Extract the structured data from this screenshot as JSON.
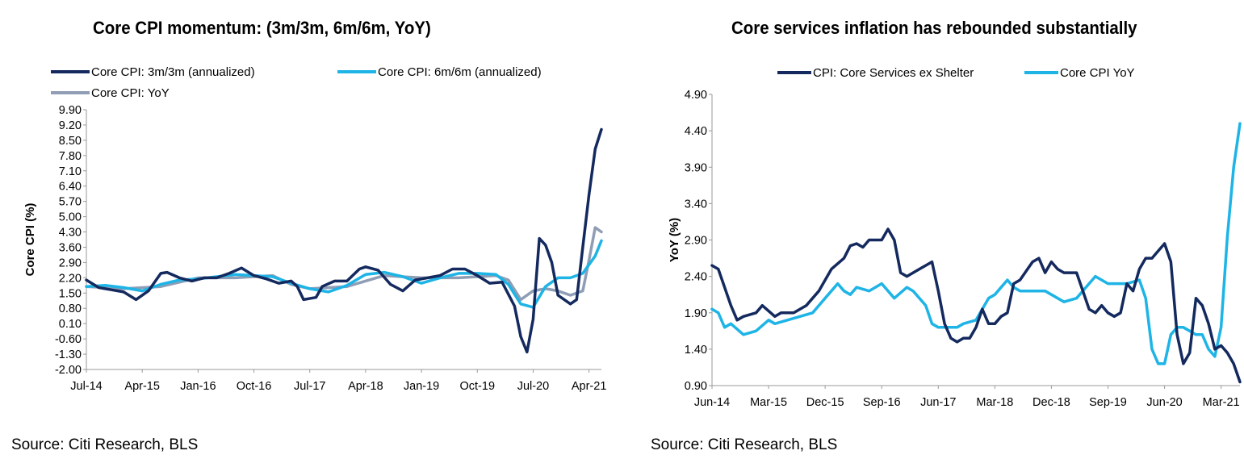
{
  "chart_data": [
    {
      "type": "line",
      "title": "Core CPI momentum: (3m/3m, 6m/6m, YoY)",
      "xlabel": "",
      "ylabel": "Core CPI (%)",
      "ylim": [
        -2.0,
        9.9
      ],
      "y_ticks": [
        "9.90",
        "9.20",
        "8.50",
        "7.80",
        "7.10",
        "6.40",
        "5.70",
        "5.00",
        "4.30",
        "3.60",
        "2.90",
        "2.20",
        "1.50",
        "0.80",
        "0.10",
        "-0.60",
        "-1.30",
        "-2.00"
      ],
      "x_ticks": [
        "Jul-14",
        "Apr-15",
        "Jan-16",
        "Oct-16",
        "Jul-17",
        "Apr-18",
        "Jan-19",
        "Oct-19",
        "Jul-20",
        "Apr-21"
      ],
      "x_range": [
        "Jul-14",
        "Jun-21"
      ],
      "grid": false,
      "legend_position": "top",
      "source": "Source: Citi Research, BLS",
      "series": [
        {
          "name": "Core CPI: 3m/3m (annualized)",
          "color": "#14295e",
          "points": [
            [
              "Jul-14",
              2.1
            ],
            [
              "Sep-14",
              1.75
            ],
            [
              "Nov-14",
              1.65
            ],
            [
              "Jan-15",
              1.55
            ],
            [
              "Mar-15",
              1.2
            ],
            [
              "May-15",
              1.6
            ],
            [
              "Jul-15",
              2.4
            ],
            [
              "Aug-15",
              2.45
            ],
            [
              "Oct-15",
              2.2
            ],
            [
              "Dec-15",
              2.05
            ],
            [
              "Feb-16",
              2.2
            ],
            [
              "Apr-16",
              2.2
            ],
            [
              "Jun-16",
              2.4
            ],
            [
              "Aug-16",
              2.65
            ],
            [
              "Oct-16",
              2.3
            ],
            [
              "Dec-16",
              2.15
            ],
            [
              "Feb-17",
              1.95
            ],
            [
              "Apr-17",
              2.05
            ],
            [
              "May-17",
              1.8
            ],
            [
              "Jun-17",
              1.2
            ],
            [
              "Aug-17",
              1.3
            ],
            [
              "Sep-17",
              1.8
            ],
            [
              "Nov-17",
              2.05
            ],
            [
              "Jan-18",
              2.05
            ],
            [
              "Mar-18",
              2.6
            ],
            [
              "Apr-18",
              2.7
            ],
            [
              "Jun-18",
              2.55
            ],
            [
              "Aug-18",
              1.9
            ],
            [
              "Oct-18",
              1.6
            ],
            [
              "Dec-18",
              2.1
            ],
            [
              "Feb-19",
              2.2
            ],
            [
              "Apr-19",
              2.3
            ],
            [
              "Jun-19",
              2.6
            ],
            [
              "Aug-19",
              2.6
            ],
            [
              "Oct-19",
              2.3
            ],
            [
              "Dec-19",
              1.95
            ],
            [
              "Feb-20",
              2.0
            ],
            [
              "Apr-20",
              0.9
            ],
            [
              "May-20",
              -0.5
            ],
            [
              "Jun-20",
              -1.2
            ],
            [
              "Jul-20",
              0.3
            ],
            [
              "Aug-20",
              4.0
            ],
            [
              "Sep-20",
              3.7
            ],
            [
              "Oct-20",
              2.9
            ],
            [
              "Nov-20",
              1.4
            ],
            [
              "Jan-21",
              1.0
            ],
            [
              "Feb-21",
              1.2
            ],
            [
              "Mar-21",
              3.6
            ],
            [
              "Apr-21",
              6.0
            ],
            [
              "May-21",
              8.1
            ],
            [
              "Jun-21",
              9.0
            ]
          ]
        },
        {
          "name": "Core CPI: 6m/6m (annualized)",
          "color": "#1eb4e6",
          "points": [
            [
              "Jul-14",
              1.8
            ],
            [
              "Oct-14",
              1.85
            ],
            [
              "Jan-15",
              1.75
            ],
            [
              "Apr-15",
              1.6
            ],
            [
              "Jul-15",
              1.9
            ],
            [
              "Oct-15",
              2.1
            ],
            [
              "Jan-16",
              2.15
            ],
            [
              "Apr-16",
              2.25
            ],
            [
              "Jul-16",
              2.35
            ],
            [
              "Oct-16",
              2.3
            ],
            [
              "Jan-17",
              2.25
            ],
            [
              "Apr-17",
              1.95
            ],
            [
              "Jul-17",
              1.7
            ],
            [
              "Oct-17",
              1.55
            ],
            [
              "Jan-18",
              1.85
            ],
            [
              "Apr-18",
              2.35
            ],
            [
              "Jul-18",
              2.45
            ],
            [
              "Oct-18",
              2.25
            ],
            [
              "Jan-19",
              1.95
            ],
            [
              "Apr-19",
              2.2
            ],
            [
              "Jul-19",
              2.4
            ],
            [
              "Oct-19",
              2.4
            ],
            [
              "Jan-20",
              2.35
            ],
            [
              "Mar-20",
              1.9
            ],
            [
              "May-20",
              1.0
            ],
            [
              "Jul-20",
              0.85
            ],
            [
              "Sep-20",
              1.8
            ],
            [
              "Nov-20",
              2.2
            ],
            [
              "Jan-21",
              2.2
            ],
            [
              "Mar-21",
              2.4
            ],
            [
              "May-21",
              3.2
            ],
            [
              "Jun-21",
              3.9
            ]
          ]
        },
        {
          "name": "Core CPI: YoY",
          "color": "#8f9db5",
          "points": [
            [
              "Jul-14",
              1.8
            ],
            [
              "Jan-15",
              1.7
            ],
            [
              "Jul-15",
              1.8
            ],
            [
              "Jan-16",
              2.2
            ],
            [
              "Jul-16",
              2.2
            ],
            [
              "Jan-17",
              2.3
            ],
            [
              "Apr-17",
              1.9
            ],
            [
              "Jul-17",
              1.7
            ],
            [
              "Jan-18",
              1.8
            ],
            [
              "Jul-18",
              2.3
            ],
            [
              "Jan-19",
              2.2
            ],
            [
              "Jul-19",
              2.2
            ],
            [
              "Jan-20",
              2.3
            ],
            [
              "Mar-20",
              2.1
            ],
            [
              "May-20",
              1.2
            ],
            [
              "Jul-20",
              1.6
            ],
            [
              "Sep-20",
              1.7
            ],
            [
              "Nov-20",
              1.6
            ],
            [
              "Jan-21",
              1.4
            ],
            [
              "Mar-21",
              1.6
            ],
            [
              "Apr-21",
              3.0
            ],
            [
              "May-21",
              4.5
            ],
            [
              "Jun-21",
              4.3
            ]
          ]
        }
      ]
    },
    {
      "type": "line",
      "title": "Core services inflation has rebounded substantially",
      "xlabel": "",
      "ylabel": "YoY (%)",
      "ylim": [
        0.9,
        4.9
      ],
      "y_ticks": [
        "4.90",
        "4.40",
        "3.90",
        "3.40",
        "2.90",
        "2.40",
        "1.90",
        "1.40",
        "0.90"
      ],
      "x_ticks": [
        "Jun-14",
        "Mar-15",
        "Dec-15",
        "Sep-16",
        "Jun-17",
        "Mar-18",
        "Dec-18",
        "Sep-19",
        "Jun-20",
        "Mar-21"
      ],
      "x_range": [
        "Jun-14",
        "Jun-21"
      ],
      "grid": false,
      "legend_position": "top",
      "source": "Source: Citi Research, BLS",
      "series": [
        {
          "name": "CPI: Core Services ex Shelter",
          "color": "#14295e",
          "points": [
            [
              "Jun-14",
              2.55
            ],
            [
              "Jul-14",
              2.5
            ],
            [
              "Sep-14",
              2.0
            ],
            [
              "Oct-14",
              1.8
            ],
            [
              "Nov-14",
              1.85
            ],
            [
              "Jan-15",
              1.9
            ],
            [
              "Feb-15",
              2.0
            ],
            [
              "Apr-15",
              1.85
            ],
            [
              "May-15",
              1.9
            ],
            [
              "Jul-15",
              1.9
            ],
            [
              "Sep-15",
              2.0
            ],
            [
              "Nov-15",
              2.2
            ],
            [
              "Jan-16",
              2.5
            ],
            [
              "Mar-16",
              2.65
            ],
            [
              "Apr-16",
              2.82
            ],
            [
              "May-16",
              2.85
            ],
            [
              "Jun-16",
              2.8
            ],
            [
              "Jul-16",
              2.9
            ],
            [
              "Sep-16",
              2.9
            ],
            [
              "Oct-16",
              3.05
            ],
            [
              "Nov-16",
              2.9
            ],
            [
              "Dec-16",
              2.45
            ],
            [
              "Jan-17",
              2.4
            ],
            [
              "Feb-17",
              2.45
            ],
            [
              "Apr-17",
              2.55
            ],
            [
              "May-17",
              2.6
            ],
            [
              "Jun-17",
              2.2
            ],
            [
              "Jul-17",
              1.75
            ],
            [
              "Aug-17",
              1.55
            ],
            [
              "Sep-17",
              1.5
            ],
            [
              "Oct-17",
              1.55
            ],
            [
              "Nov-17",
              1.55
            ],
            [
              "Dec-17",
              1.7
            ],
            [
              "Jan-18",
              1.95
            ],
            [
              "Feb-18",
              1.75
            ],
            [
              "Mar-18",
              1.75
            ],
            [
              "Apr-18",
              1.85
            ],
            [
              "May-18",
              1.9
            ],
            [
              "Jun-18",
              2.3
            ],
            [
              "Jul-18",
              2.35
            ],
            [
              "Sep-18",
              2.6
            ],
            [
              "Oct-18",
              2.65
            ],
            [
              "Nov-18",
              2.45
            ],
            [
              "Dec-18",
              2.6
            ],
            [
              "Jan-19",
              2.5
            ],
            [
              "Feb-19",
              2.45
            ],
            [
              "Apr-19",
              2.45
            ],
            [
              "May-19",
              2.2
            ],
            [
              "Jun-19",
              1.95
            ],
            [
              "Jul-19",
              1.9
            ],
            [
              "Aug-19",
              2.0
            ],
            [
              "Sep-19",
              1.9
            ],
            [
              "Oct-19",
              1.85
            ],
            [
              "Nov-19",
              1.9
            ],
            [
              "Dec-19",
              2.3
            ],
            [
              "Jan-20",
              2.2
            ],
            [
              "Feb-20",
              2.5
            ],
            [
              "Mar-20",
              2.65
            ],
            [
              "Apr-20",
              2.65
            ],
            [
              "May-20",
              2.75
            ],
            [
              "Jun-20",
              2.85
            ],
            [
              "Jul-20",
              2.6
            ],
            [
              "Aug-20",
              1.6
            ],
            [
              "Sep-20",
              1.2
            ],
            [
              "Oct-20",
              1.35
            ],
            [
              "Nov-20",
              2.1
            ],
            [
              "Dec-20",
              2.0
            ],
            [
              "Jan-21",
              1.75
            ],
            [
              "Feb-21",
              1.4
            ],
            [
              "Mar-21",
              1.45
            ],
            [
              "Apr-21",
              1.35
            ],
            [
              "May-21",
              1.2
            ],
            [
              "Jun-21",
              0.95
            ]
          ]
        },
        {
          "name": "Core CPI YoY",
          "color": "#1eb4e6",
          "points": [
            [
              "Jun-14",
              1.95
            ],
            [
              "Jul-14",
              1.9
            ],
            [
              "Aug-14",
              1.7
            ],
            [
              "Sep-14",
              1.75
            ],
            [
              "Nov-14",
              1.6
            ],
            [
              "Jan-15",
              1.65
            ],
            [
              "Mar-15",
              1.8
            ],
            [
              "Apr-15",
              1.75
            ],
            [
              "Jun-15",
              1.8
            ],
            [
              "Aug-15",
              1.85
            ],
            [
              "Oct-15",
              1.9
            ],
            [
              "Dec-15",
              2.1
            ],
            [
              "Feb-16",
              2.3
            ],
            [
              "Mar-16",
              2.2
            ],
            [
              "Apr-16",
              2.15
            ],
            [
              "May-16",
              2.25
            ],
            [
              "Jul-16",
              2.2
            ],
            [
              "Sep-16",
              2.3
            ],
            [
              "Nov-16",
              2.1
            ],
            [
              "Jan-17",
              2.25
            ],
            [
              "Feb-17",
              2.2
            ],
            [
              "Apr-17",
              2.0
            ],
            [
              "May-17",
              1.75
            ],
            [
              "Jun-17",
              1.7
            ],
            [
              "Aug-17",
              1.7
            ],
            [
              "Sep-17",
              1.7
            ],
            [
              "Oct-17",
              1.75
            ],
            [
              "Dec-17",
              1.8
            ],
            [
              "Feb-18",
              2.1
            ],
            [
              "Mar-18",
              2.15
            ],
            [
              "Apr-18",
              2.25
            ],
            [
              "May-18",
              2.35
            ],
            [
              "Jun-18",
              2.25
            ],
            [
              "Jul-18",
              2.2
            ],
            [
              "Sep-18",
              2.2
            ],
            [
              "Nov-18",
              2.2
            ],
            [
              "Jan-19",
              2.1
            ],
            [
              "Feb-19",
              2.05
            ],
            [
              "Apr-19",
              2.1
            ],
            [
              "Jun-19",
              2.3
            ],
            [
              "Jul-19",
              2.4
            ],
            [
              "Sep-19",
              2.3
            ],
            [
              "Oct-19",
              2.3
            ],
            [
              "Dec-19",
              2.3
            ],
            [
              "Feb-20",
              2.35
            ],
            [
              "Mar-20",
              2.1
            ],
            [
              "Apr-20",
              1.4
            ],
            [
              "May-20",
              1.2
            ],
            [
              "Jun-20",
              1.2
            ],
            [
              "Jul-20",
              1.6
            ],
            [
              "Aug-20",
              1.7
            ],
            [
              "Sep-20",
              1.7
            ],
            [
              "Oct-20",
              1.65
            ],
            [
              "Nov-20",
              1.6
            ],
            [
              "Dec-20",
              1.6
            ],
            [
              "Jan-21",
              1.4
            ],
            [
              "Feb-21",
              1.3
            ],
            [
              "Mar-21",
              1.7
            ],
            [
              "Apr-21",
              2.95
            ],
            [
              "May-21",
              3.9
            ],
            [
              "Jun-21",
              4.5
            ]
          ]
        }
      ]
    }
  ]
}
